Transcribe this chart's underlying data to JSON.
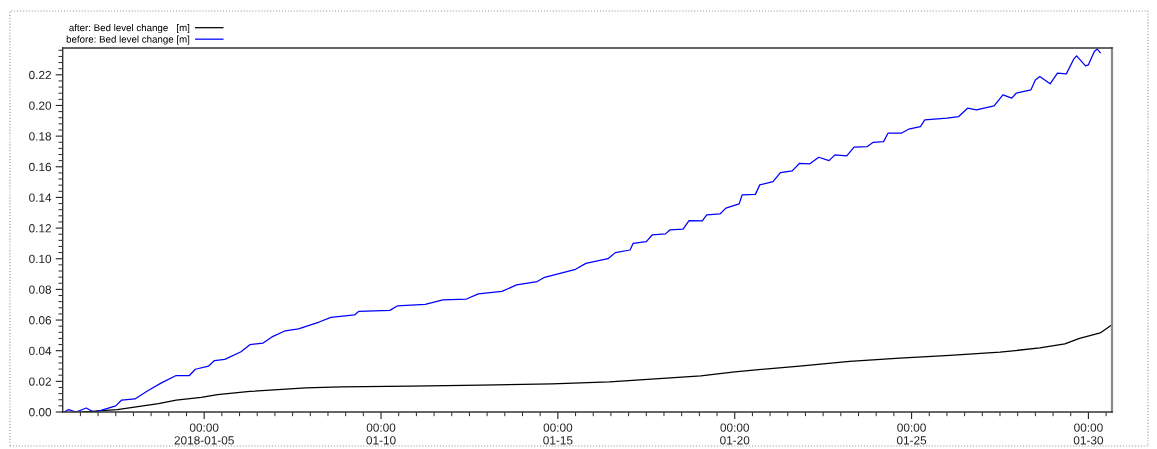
{
  "chart_data": {
    "type": "line",
    "legend": "top left",
    "grid": false,
    "line_style": "solid",
    "xlim": [
      "2018-01-01T00:00",
      "2018-01-30T16:00"
    ],
    "xticks": [
      {
        "value": "2018-01-01T12:00",
        "label": null
      },
      {
        "value": "2018-01-02T00:00",
        "label": null
      },
      {
        "value": "2018-01-02T12:00",
        "label": null
      },
      {
        "value": "2018-01-03T00:00",
        "label": null
      },
      {
        "value": "2018-01-03T12:00",
        "label": null
      },
      {
        "value": "2018-01-04T00:00",
        "label": null
      },
      {
        "value": "2018-01-04T12:00",
        "label": null
      },
      {
        "value": "2018-01-05T00:00",
        "label": "00:00\n2018-01-05"
      },
      {
        "value": "2018-01-05T12:00",
        "label": null
      },
      {
        "value": "2018-01-06T00:00",
        "label": null
      },
      {
        "value": "2018-01-06T12:00",
        "label": null
      },
      {
        "value": "2018-01-07T00:00",
        "label": null
      },
      {
        "value": "2018-01-07T12:00",
        "label": null
      },
      {
        "value": "2018-01-08T00:00",
        "label": null
      },
      {
        "value": "2018-01-08T12:00",
        "label": null
      },
      {
        "value": "2018-01-09T00:00",
        "label": null
      },
      {
        "value": "2018-01-09T12:00",
        "label": null
      },
      {
        "value": "2018-01-10T00:00",
        "label": "00:00\n01-10"
      },
      {
        "value": "2018-01-10T12:00",
        "label": null
      },
      {
        "value": "2018-01-11T00:00",
        "label": null
      },
      {
        "value": "2018-01-11T12:00",
        "label": null
      },
      {
        "value": "2018-01-12T00:00",
        "label": null
      },
      {
        "value": "2018-01-12T12:00",
        "label": null
      },
      {
        "value": "2018-01-13T00:00",
        "label": null
      },
      {
        "value": "2018-01-13T12:00",
        "label": null
      },
      {
        "value": "2018-01-14T00:00",
        "label": null
      },
      {
        "value": "2018-01-14T12:00",
        "label": null
      },
      {
        "value": "2018-01-15T00:00",
        "label": "00:00\n01-15"
      },
      {
        "value": "2018-01-15T12:00",
        "label": null
      },
      {
        "value": "2018-01-16T00:00",
        "label": null
      },
      {
        "value": "2018-01-16T12:00",
        "label": null
      },
      {
        "value": "2018-01-17T00:00",
        "label": null
      },
      {
        "value": "2018-01-17T12:00",
        "label": null
      },
      {
        "value": "2018-01-18T00:00",
        "label": null
      },
      {
        "value": "2018-01-18T12:00",
        "label": null
      },
      {
        "value": "2018-01-19T00:00",
        "label": null
      },
      {
        "value": "2018-01-19T12:00",
        "label": null
      },
      {
        "value": "2018-01-20T00:00",
        "label": "00:00\n01-20"
      },
      {
        "value": "2018-01-20T12:00",
        "label": null
      },
      {
        "value": "2018-01-21T00:00",
        "label": null
      },
      {
        "value": "2018-01-21T12:00",
        "label": null
      },
      {
        "value": "2018-01-22T00:00",
        "label": null
      },
      {
        "value": "2018-01-22T12:00",
        "label": null
      },
      {
        "value": "2018-01-23T00:00",
        "label": null
      },
      {
        "value": "2018-01-23T12:00",
        "label": null
      },
      {
        "value": "2018-01-24T00:00",
        "label": null
      },
      {
        "value": "2018-01-24T12:00",
        "label": null
      },
      {
        "value": "2018-01-25T00:00",
        "label": "00:00\n01-25"
      },
      {
        "value": "2018-01-25T12:00",
        "label": null
      },
      {
        "value": "2018-01-26T00:00",
        "label": null
      },
      {
        "value": "2018-01-26T12:00",
        "label": null
      },
      {
        "value": "2018-01-27T00:00",
        "label": null
      },
      {
        "value": "2018-01-27T12:00",
        "label": null
      },
      {
        "value": "2018-01-28T00:00",
        "label": null
      },
      {
        "value": "2018-01-28T12:00",
        "label": null
      },
      {
        "value": "2018-01-29T00:00",
        "label": null
      },
      {
        "value": "2018-01-29T12:00",
        "label": null
      },
      {
        "value": "2018-01-30T00:00",
        "label": "00:00\n01-30"
      },
      {
        "value": "2018-01-30T12:00",
        "label": null
      }
    ],
    "ylim": [
      0,
      0.2375
    ],
    "yticks": [
      {
        "value": 0,
        "label": "0.00"
      },
      {
        "value": 0.004,
        "label": null
      },
      {
        "value": 0.008,
        "label": null
      },
      {
        "value": 0.012,
        "label": null
      },
      {
        "value": 0.016,
        "label": null
      },
      {
        "value": 0.02,
        "label": "0.02"
      },
      {
        "value": 0.024,
        "label": null
      },
      {
        "value": 0.028,
        "label": null
      },
      {
        "value": 0.032,
        "label": null
      },
      {
        "value": 0.036,
        "label": null
      },
      {
        "value": 0.04,
        "label": "0.04"
      },
      {
        "value": 0.044,
        "label": null
      },
      {
        "value": 0.048,
        "label": null
      },
      {
        "value": 0.052,
        "label": null
      },
      {
        "value": 0.056,
        "label": null
      },
      {
        "value": 0.06,
        "label": "0.06"
      },
      {
        "value": 0.064,
        "label": null
      },
      {
        "value": 0.068,
        "label": null
      },
      {
        "value": 0.072,
        "label": null
      },
      {
        "value": 0.076,
        "label": null
      },
      {
        "value": 0.08,
        "label": "0.08"
      },
      {
        "value": 0.084,
        "label": null
      },
      {
        "value": 0.088,
        "label": null
      },
      {
        "value": 0.092,
        "label": null
      },
      {
        "value": 0.096,
        "label": null
      },
      {
        "value": 0.1,
        "label": "0.10"
      },
      {
        "value": 0.104,
        "label": null
      },
      {
        "value": 0.108,
        "label": null
      },
      {
        "value": 0.112,
        "label": null
      },
      {
        "value": 0.116,
        "label": null
      },
      {
        "value": 0.12,
        "label": "0.12"
      },
      {
        "value": 0.124,
        "label": null
      },
      {
        "value": 0.128,
        "label": null
      },
      {
        "value": 0.132,
        "label": null
      },
      {
        "value": 0.136,
        "label": null
      },
      {
        "value": 0.14,
        "label": "0.14"
      },
      {
        "value": 0.144,
        "label": null
      },
      {
        "value": 0.148,
        "label": null
      },
      {
        "value": 0.152,
        "label": null
      },
      {
        "value": 0.156,
        "label": null
      },
      {
        "value": 0.16,
        "label": "0.16"
      },
      {
        "value": 0.164,
        "label": null
      },
      {
        "value": 0.168,
        "label": null
      },
      {
        "value": 0.172,
        "label": null
      },
      {
        "value": 0.176,
        "label": null
      },
      {
        "value": 0.18,
        "label": "0.18"
      },
      {
        "value": 0.184,
        "label": null
      },
      {
        "value": 0.188,
        "label": null
      },
      {
        "value": 0.192,
        "label": null
      },
      {
        "value": 0.196,
        "label": null
      },
      {
        "value": 0.2,
        "label": "0.20"
      },
      {
        "value": 0.204,
        "label": null
      },
      {
        "value": 0.208,
        "label": null
      },
      {
        "value": 0.212,
        "label": null
      },
      {
        "value": 0.216,
        "label": null
      },
      {
        "value": 0.22,
        "label": "0.22"
      },
      {
        "value": 0.224,
        "label": null
      },
      {
        "value": 0.228,
        "label": null
      },
      {
        "value": 0.232,
        "label": null
      },
      {
        "value": 0.236,
        "label": null
      }
    ],
    "series": [
      {
        "name": "after: Bed level change   [m]",
        "color": "#000000",
        "x": [
          "2018-01-01T12:00",
          "2018-01-02T13:00",
          "2018-01-03T17:00",
          "2018-01-04T05:00",
          "2018-01-04T22:00",
          "2018-01-05T09:00",
          "2018-01-06T07:00",
          "2018-01-07T21:00",
          "2018-01-08T21:00",
          "2018-01-10T20:00",
          "2018-01-12T20:00",
          "2018-01-14T20:00",
          "2018-01-16T11:00",
          "2018-01-19T01:00",
          "2018-01-20T00:00",
          "2018-01-21T20:00",
          "2018-01-23T06:00",
          "2018-01-24T16:00",
          "2018-01-26T02:00",
          "2018-01-27T12:00",
          "2018-01-28T15:00",
          "2018-01-29T08:00",
          "2018-01-29T18:00",
          "2018-01-30T08:00",
          "2018-01-30T16:00"
        ],
        "values": [
          0.0,
          0.0016,
          0.0054,
          0.0077,
          0.0095,
          0.0114,
          0.0134,
          0.0157,
          0.0164,
          0.0169,
          0.0176,
          0.0183,
          0.0196,
          0.0235,
          0.0262,
          0.03,
          0.033,
          0.0352,
          0.037,
          0.039,
          0.0418,
          0.0444,
          0.048,
          0.0516,
          0.057
        ]
      },
      {
        "name": "before: Bed level change [m]",
        "color": "#0000ff",
        "x": [
          "2018-01-01T01:00",
          "2018-01-01T04:00",
          "2018-01-01T09:00",
          "2018-01-01T16:00",
          "2018-01-01T21:00",
          "2018-01-02T02:00",
          "2018-01-02T12:00",
          "2018-01-02T16:00",
          "2018-01-03T01:00",
          "2018-01-03T10:00",
          "2018-01-03T19:00",
          "2018-01-04T05:00",
          "2018-01-04T14:00",
          "2018-01-04T18:00",
          "2018-01-05T03:00",
          "2018-01-05T07:00",
          "2018-01-05T14:00",
          "2018-01-06T01:00",
          "2018-01-06T07:00",
          "2018-01-06T16:00",
          "2018-01-06T22:00",
          "2018-01-07T07:00",
          "2018-01-07T16:00",
          "2018-01-08T06:00",
          "2018-01-08T14:00",
          "2018-01-09T06:00",
          "2018-01-09T09:00",
          "2018-01-10T06:00",
          "2018-01-10T11:00",
          "2018-01-11T06:00",
          "2018-01-11T18:00",
          "2018-01-12T10:00",
          "2018-01-12T18:00",
          "2018-01-13T10:00",
          "2018-01-13T20:00",
          "2018-01-14T10:00",
          "2018-01-14T15:00",
          "2018-01-15T12:00",
          "2018-01-15T19:00",
          "2018-01-16T10:00",
          "2018-01-16T15:00",
          "2018-01-17T01:00",
          "2018-01-17T03:00",
          "2018-01-17T12:00",
          "2018-01-17T16:00",
          "2018-01-18T01:00",
          "2018-01-18T04:00",
          "2018-01-18T13:00",
          "2018-01-18T17:00",
          "2018-01-19T02:00",
          "2018-01-19T05:00",
          "2018-01-19T14:00",
          "2018-01-19T18:00",
          "2018-01-20T03:00",
          "2018-01-20T05:00",
          "2018-01-20T14:00",
          "2018-01-20T17:00",
          "2018-01-21T02:00",
          "2018-01-21T07:00",
          "2018-01-21T15:00",
          "2018-01-21T20:00",
          "2018-01-22T03:00",
          "2018-01-22T09:00",
          "2018-01-22T16:00",
          "2018-01-22T20:00",
          "2018-01-23T04:00",
          "2018-01-23T09:00",
          "2018-01-23T18:00",
          "2018-01-23T22:00",
          "2018-01-24T05:00",
          "2018-01-24T08:00",
          "2018-01-24T17:00",
          "2018-01-24T22:00",
          "2018-01-25T06:00",
          "2018-01-25T09:00",
          "2018-01-26T00:00",
          "2018-01-26T08:00",
          "2018-01-26T14:00",
          "2018-01-26T20:00",
          "2018-01-27T08:00",
          "2018-01-27T14:00",
          "2018-01-27T20:00",
          "2018-01-27T23:00",
          "2018-01-28T09:00",
          "2018-01-28T12:00",
          "2018-01-28T15:00",
          "2018-01-28T22:00",
          "2018-01-29T03:00",
          "2018-01-29T09:00",
          "2018-01-29T14:00",
          "2018-01-29T16:00",
          "2018-01-29T22:00",
          "2018-01-30T00:00",
          "2018-01-30T04:00",
          "2018-01-30T06:00",
          "2018-01-30T08:00"
        ],
        "values": [
          0.0,
          0.0016,
          0.0,
          0.0026,
          0.0,
          0.001,
          0.004,
          0.0078,
          0.0085,
          0.014,
          0.019,
          0.0238,
          0.0238,
          0.0279,
          0.03,
          0.0336,
          0.0343,
          0.0393,
          0.0439,
          0.045,
          0.049,
          0.053,
          0.0542,
          0.0587,
          0.0617,
          0.0633,
          0.0657,
          0.0663,
          0.0692,
          0.0702,
          0.0732,
          0.0737,
          0.0771,
          0.0787,
          0.0829,
          0.0851,
          0.0879,
          0.0931,
          0.097,
          0.1,
          0.104,
          0.1057,
          0.11,
          0.1112,
          0.1155,
          0.1162,
          0.1188,
          0.1193,
          0.1249,
          0.1247,
          0.1286,
          0.1292,
          0.133,
          0.1358,
          0.1416,
          0.142,
          0.1482,
          0.1503,
          0.1562,
          0.1573,
          0.1623,
          0.1619,
          0.1662,
          0.164,
          0.1678,
          0.1671,
          0.1728,
          0.1732,
          0.176,
          0.1764,
          0.1819,
          0.1819,
          0.1845,
          0.1862,
          0.1906,
          0.1917,
          0.1928,
          0.1982,
          0.1971,
          0.1997,
          0.2069,
          0.2048,
          0.208,
          0.2102,
          0.2167,
          0.2189,
          0.2141,
          0.2211,
          0.2206,
          0.2302,
          0.2324,
          0.2258,
          0.2265,
          0.2352,
          0.2368,
          0.2345
        ]
      }
    ]
  }
}
